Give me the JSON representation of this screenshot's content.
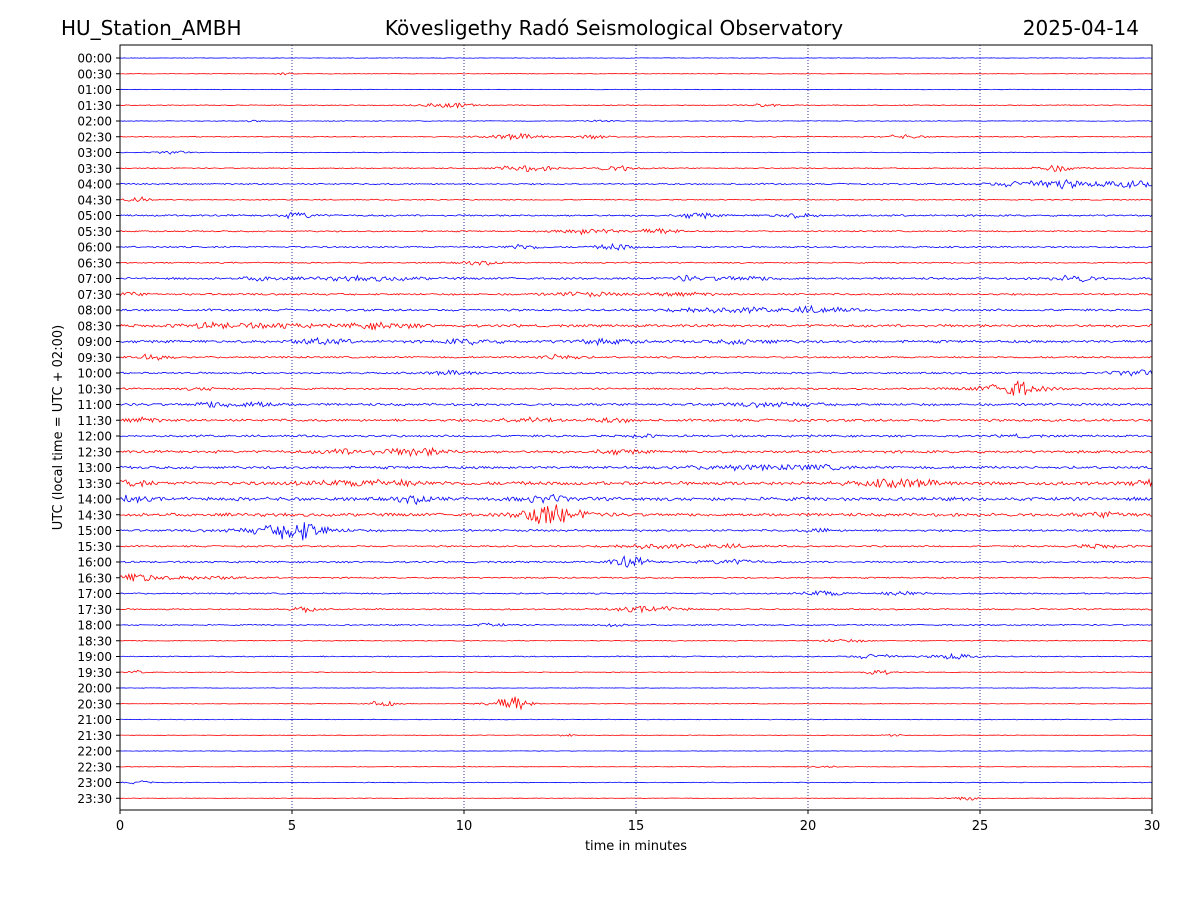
{
  "header": {
    "station": "HU_Station_AMBH",
    "observatory": "Kövesligethy Radó Seismological Observatory",
    "date": "2025-04-14"
  },
  "colors": {
    "even_hour": "#0000ff",
    "half_hour": "#ff0000",
    "grid": "#000080",
    "axes": "#000000"
  },
  "chart_data": {
    "type": "line",
    "title": "Kövesligethy Radó Seismological Observatory",
    "xlabel": "time in minutes",
    "ylabel": "UTC (local time = UTC + 02:00)",
    "xlim": [
      0,
      30
    ],
    "xticks": [
      0,
      5,
      10,
      15,
      20,
      25,
      30
    ],
    "vertical_grid": [
      5,
      10,
      15,
      20,
      25
    ],
    "traces": [
      {
        "label": "00:00",
        "color": "#0000ff",
        "noise": 0.3,
        "events": []
      },
      {
        "label": "00:30",
        "color": "#ff0000",
        "noise": 0.3,
        "events": [
          [
            4.8,
            1.0,
            0.3
          ]
        ]
      },
      {
        "label": "01:00",
        "color": "#0000ff",
        "noise": 0.3,
        "events": []
      },
      {
        "label": "01:30",
        "color": "#ff0000",
        "noise": 0.5,
        "events": [
          [
            9.5,
            2.5,
            0.8
          ],
          [
            18.7,
            1.8,
            0.4
          ]
        ]
      },
      {
        "label": "02:00",
        "color": "#0000ff",
        "noise": 0.4,
        "events": [
          [
            3.9,
            1.2,
            0.2
          ],
          [
            14.0,
            1.2,
            0.4
          ]
        ]
      },
      {
        "label": "02:30",
        "color": "#ff0000",
        "noise": 0.5,
        "events": [
          [
            11.5,
            3.0,
            0.8
          ],
          [
            13.8,
            2.2,
            0.5
          ],
          [
            22.8,
            2.0,
            0.6
          ]
        ]
      },
      {
        "label": "03:00",
        "color": "#0000ff",
        "noise": 0.4,
        "events": [
          [
            1.5,
            2.0,
            0.4
          ]
        ]
      },
      {
        "label": "03:30",
        "color": "#ff0000",
        "noise": 0.6,
        "events": [
          [
            11.8,
            3.5,
            0.8
          ],
          [
            14.5,
            3.0,
            0.6
          ],
          [
            27.2,
            3.5,
            0.6
          ]
        ]
      },
      {
        "label": "04:00",
        "color": "#0000ff",
        "noise": 0.8,
        "events": [
          [
            27.0,
            4.5,
            1.5
          ],
          [
            29.5,
            3.5,
            0.8
          ]
        ]
      },
      {
        "label": "04:30",
        "color": "#ff0000",
        "noise": 0.6,
        "events": [
          [
            0.5,
            3.0,
            0.3
          ]
        ]
      },
      {
        "label": "05:00",
        "color": "#0000ff",
        "noise": 1.0,
        "events": [
          [
            5.2,
            3.0,
            0.5
          ],
          [
            16.8,
            3.0,
            0.5
          ],
          [
            19.6,
            2.0,
            0.6
          ]
        ]
      },
      {
        "label": "05:30",
        "color": "#ff0000",
        "noise": 0.8,
        "events": [
          [
            13.6,
            3.0,
            0.8
          ],
          [
            15.7,
            2.8,
            0.6
          ]
        ]
      },
      {
        "label": "06:00",
        "color": "#0000ff",
        "noise": 0.9,
        "events": [
          [
            11.7,
            2.8,
            0.5
          ],
          [
            14.4,
            3.2,
            0.5
          ]
        ]
      },
      {
        "label": "06:30",
        "color": "#ff0000",
        "noise": 0.7,
        "events": [
          [
            10.5,
            2.0,
            0.6
          ]
        ]
      },
      {
        "label": "07:00",
        "color": "#0000ff",
        "noise": 1.2,
        "events": [
          [
            4.2,
            2.5,
            0.5
          ],
          [
            7.2,
            2.0,
            1.5
          ],
          [
            16.4,
            2.5,
            0.3
          ],
          [
            18.0,
            2.0,
            1.2
          ],
          [
            27.8,
            3.5,
            0.6
          ]
        ]
      },
      {
        "label": "07:30",
        "color": "#ff0000",
        "noise": 1.1,
        "events": [
          [
            0.2,
            2.0,
            0.5
          ],
          [
            13.5,
            2.0,
            1.0
          ],
          [
            16.3,
            2.0,
            0.8
          ]
        ]
      },
      {
        "label": "08:00",
        "color": "#0000ff",
        "noise": 1.2,
        "events": [
          [
            16.8,
            2.5,
            0.8
          ],
          [
            20.3,
            3.5,
            0.8
          ],
          [
            18.3,
            2.0,
            1.0
          ]
        ]
      },
      {
        "label": "08:30",
        "color": "#ff0000",
        "noise": 1.5,
        "events": [
          [
            2.8,
            2.5,
            1.2
          ],
          [
            7.6,
            3.0,
            1.0
          ],
          [
            4.8,
            2.0,
            0.8
          ]
        ]
      },
      {
        "label": "09:00",
        "color": "#0000ff",
        "noise": 1.5,
        "events": [
          [
            5.8,
            3.0,
            0.8
          ],
          [
            10.2,
            2.5,
            0.8
          ],
          [
            14.0,
            2.0,
            1.0
          ],
          [
            18.2,
            2.0,
            1.0
          ]
        ]
      },
      {
        "label": "09:30",
        "color": "#ff0000",
        "noise": 1.0,
        "events": [
          [
            0.9,
            3.0,
            0.5
          ],
          [
            12.8,
            3.0,
            0.6
          ]
        ]
      },
      {
        "label": "10:00",
        "color": "#0000ff",
        "noise": 1.0,
        "events": [
          [
            9.7,
            2.0,
            0.8
          ],
          [
            29.5,
            3.0,
            0.6
          ]
        ]
      },
      {
        "label": "10:30",
        "color": "#ff0000",
        "noise": 1.0,
        "events": [
          [
            26.0,
            7.0,
            0.5
          ],
          [
            25.8,
            3.0,
            1.2
          ],
          [
            2.5,
            1.5,
            0.6
          ]
        ]
      },
      {
        "label": "11:00",
        "color": "#0000ff",
        "noise": 1.4,
        "events": [
          [
            2.8,
            3.0,
            0.6
          ],
          [
            4.0,
            3.0,
            0.5
          ],
          [
            19.0,
            2.0,
            1.2
          ]
        ]
      },
      {
        "label": "11:30",
        "color": "#ff0000",
        "noise": 1.4,
        "events": [
          [
            0.6,
            2.5,
            0.5
          ],
          [
            11.8,
            2.5,
            0.8
          ],
          [
            14.3,
            2.0,
            0.6
          ]
        ]
      },
      {
        "label": "12:00",
        "color": "#0000ff",
        "noise": 1.2,
        "events": [
          [
            15.2,
            1.8,
            0.4
          ],
          [
            26.2,
            1.5,
            0.5
          ]
        ]
      },
      {
        "label": "12:30",
        "color": "#ff0000",
        "noise": 1.5,
        "events": [
          [
            8.7,
            4.0,
            0.8
          ],
          [
            6.8,
            2.5,
            1.0
          ],
          [
            14.5,
            2.0,
            0.7
          ]
        ]
      },
      {
        "label": "13:00",
        "color": "#0000ff",
        "noise": 1.5,
        "events": [
          [
            18.0,
            2.0,
            1.5
          ],
          [
            20.2,
            2.0,
            1.0
          ]
        ]
      },
      {
        "label": "13:30",
        "color": "#ff0000",
        "noise": 2.0,
        "events": [
          [
            0.3,
            3.0,
            0.5
          ],
          [
            7.3,
            3.0,
            1.5
          ],
          [
            22.7,
            4.0,
            1.0
          ],
          [
            30.0,
            3.0,
            0.5
          ]
        ]
      },
      {
        "label": "14:00",
        "color": "#0000ff",
        "noise": 2.0,
        "events": [
          [
            0.2,
            3.0,
            0.5
          ],
          [
            8.6,
            3.5,
            0.5
          ],
          [
            12.3,
            3.0,
            0.7
          ]
        ]
      },
      {
        "label": "14:30",
        "color": "#ff0000",
        "noise": 1.8,
        "events": [
          [
            12.3,
            9.0,
            0.6
          ],
          [
            12.8,
            4.0,
            1.0
          ],
          [
            28.8,
            2.5,
            0.7
          ]
        ]
      },
      {
        "label": "15:00",
        "color": "#0000ff",
        "noise": 1.2,
        "events": [
          [
            5.2,
            9.0,
            0.6
          ],
          [
            4.8,
            4.0,
            1.5
          ],
          [
            20.3,
            2.0,
            0.4
          ]
        ]
      },
      {
        "label": "15:30",
        "color": "#ff0000",
        "noise": 0.9,
        "events": [
          [
            15.3,
            2.5,
            1.0
          ],
          [
            17.5,
            2.0,
            1.0
          ],
          [
            28.5,
            2.0,
            0.8
          ]
        ]
      },
      {
        "label": "16:00",
        "color": "#0000ff",
        "noise": 1.0,
        "events": [
          [
            14.8,
            6.0,
            0.5
          ],
          [
            17.8,
            2.5,
            0.8
          ]
        ]
      },
      {
        "label": "16:30",
        "color": "#ff0000",
        "noise": 0.8,
        "events": [
          [
            0.6,
            5.0,
            0.6
          ],
          [
            2.5,
            2.0,
            1.0
          ]
        ]
      },
      {
        "label": "17:00",
        "color": "#0000ff",
        "noise": 0.8,
        "events": [
          [
            20.5,
            3.0,
            0.6
          ],
          [
            22.8,
            2.5,
            0.6
          ]
        ]
      },
      {
        "label": "17:30",
        "color": "#ff0000",
        "noise": 0.8,
        "events": [
          [
            5.4,
            3.0,
            0.3
          ],
          [
            15.4,
            3.0,
            1.0
          ]
        ]
      },
      {
        "label": "18:00",
        "color": "#0000ff",
        "noise": 0.7,
        "events": [
          [
            10.8,
            2.0,
            0.4
          ],
          [
            14.3,
            2.0,
            0.3
          ]
        ]
      },
      {
        "label": "18:30",
        "color": "#ff0000",
        "noise": 0.5,
        "events": [
          [
            21.0,
            1.5,
            0.8
          ]
        ]
      },
      {
        "label": "19:00",
        "color": "#0000ff",
        "noise": 0.6,
        "events": [
          [
            22.0,
            3.0,
            0.6
          ],
          [
            24.2,
            3.0,
            0.6
          ]
        ]
      },
      {
        "label": "19:30",
        "color": "#ff0000",
        "noise": 0.4,
        "events": [
          [
            22.0,
            3.0,
            0.4
          ],
          [
            0.5,
            2.0,
            0.2
          ]
        ]
      },
      {
        "label": "20:00",
        "color": "#0000ff",
        "noise": 0.3,
        "events": []
      },
      {
        "label": "20:30",
        "color": "#ff0000",
        "noise": 0.3,
        "events": [
          [
            7.6,
            3.5,
            0.4
          ],
          [
            11.5,
            7.0,
            0.4
          ],
          [
            11.1,
            3.0,
            0.6
          ]
        ]
      },
      {
        "label": "21:00",
        "color": "#0000ff",
        "noise": 0.4,
        "events": []
      },
      {
        "label": "21:30",
        "color": "#ff0000",
        "noise": 0.3,
        "events": [
          [
            13.0,
            1.5,
            0.3
          ],
          [
            22.5,
            1.2,
            0.3
          ]
        ]
      },
      {
        "label": "22:00",
        "color": "#0000ff",
        "noise": 0.3,
        "events": []
      },
      {
        "label": "22:30",
        "color": "#ff0000",
        "noise": 0.3,
        "events": [
          [
            20.5,
            1.5,
            0.4
          ]
        ]
      },
      {
        "label": "23:00",
        "color": "#0000ff",
        "noise": 0.4,
        "events": [
          [
            0.6,
            1.5,
            0.4
          ]
        ]
      },
      {
        "label": "23:30",
        "color": "#ff0000",
        "noise": 0.3,
        "events": [
          [
            24.6,
            2.0,
            0.5
          ]
        ]
      }
    ]
  }
}
